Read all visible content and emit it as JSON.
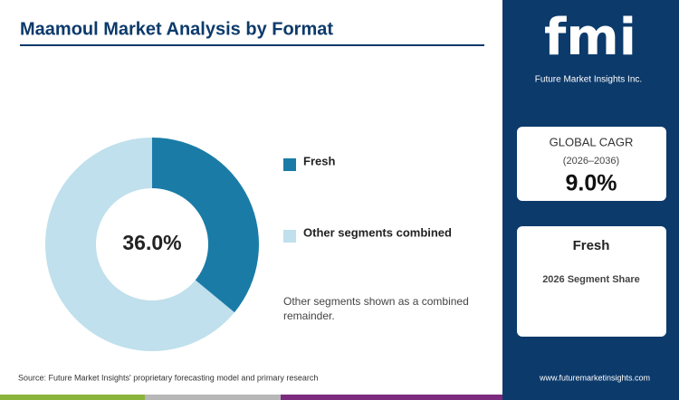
{
  "chart_data": {
    "type": "donut",
    "title": "Maamoul Market Analysis by Format",
    "categories": [
      "Fresh",
      "Other segments combined"
    ],
    "values": [
      36,
      64
    ],
    "value_labels": [
      "36.0%",
      null
    ],
    "colors": [
      "#1a7ca6",
      "#bfe0ec"
    ],
    "note": "Other segments shown as a combined remainder."
  },
  "panel": {
    "logo": "fmi",
    "logo_subtitle": "Future Market Insights Inc.",
    "cagr_label": "GLOBAL CAGR",
    "cagr_period": "(2026–2036)",
    "cagr_value": "9.0%",
    "segment": "Fresh",
    "segment_caption": "2026 Segment Share"
  },
  "footer": {
    "source": "Source: Future Market Insights' proprietary forecasting model and primary research",
    "url": "www.futuremarketinsights.com"
  }
}
